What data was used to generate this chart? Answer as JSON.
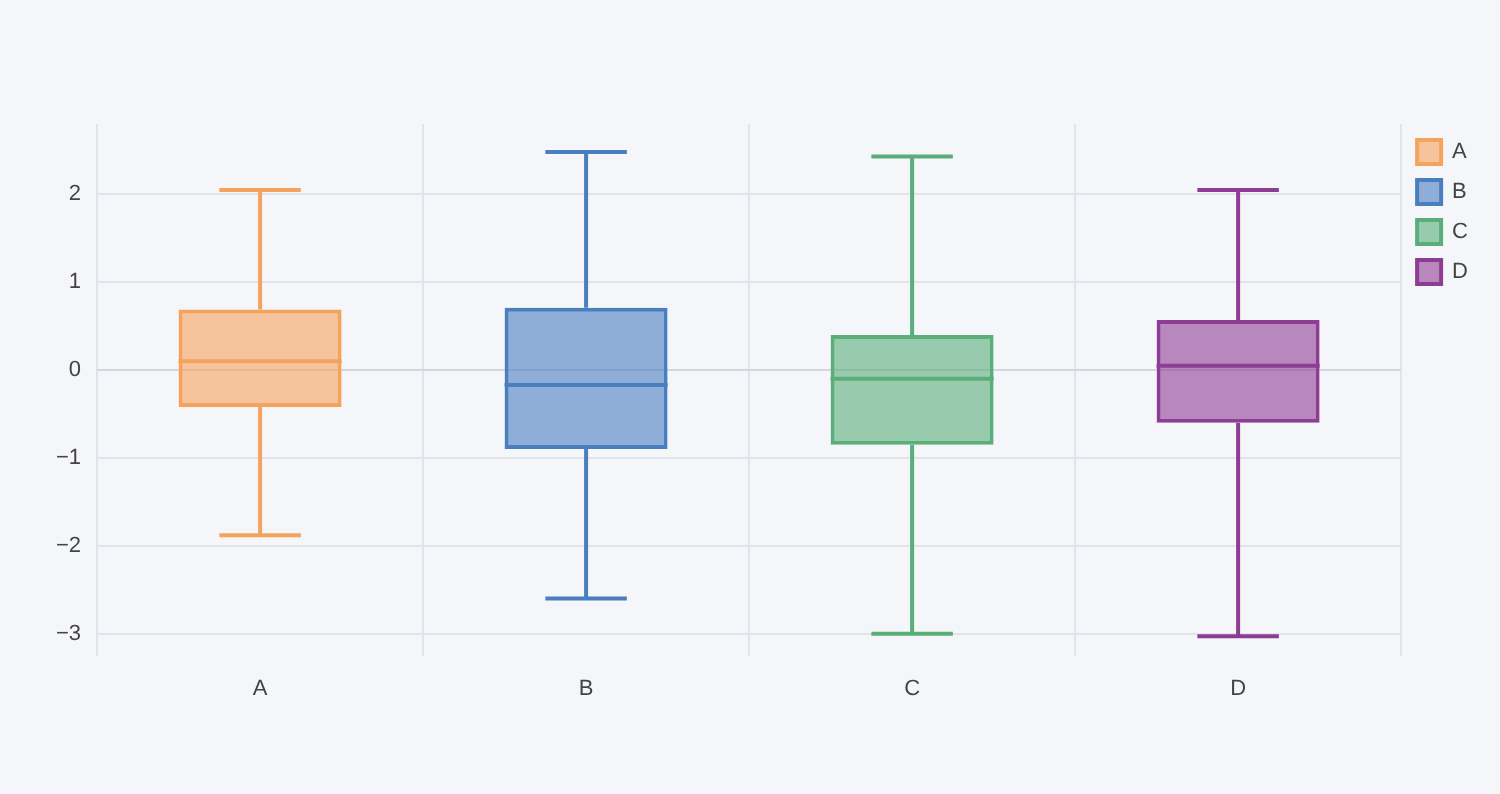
{
  "chart_data": {
    "type": "box",
    "categories": [
      "A",
      "B",
      "C",
      "D"
    ],
    "series": [
      {
        "name": "A",
        "color": "#f5a25d",
        "boxes": [
          {
            "low": -1.88,
            "q1": -0.42,
            "median": 0.1,
            "q3": 0.69,
            "high": 2.05
          },
          null,
          null,
          null
        ]
      },
      {
        "name": "B",
        "color": "#4a7fbf",
        "boxes": [
          null,
          {
            "low": -2.6,
            "q1": -0.9,
            "median": -0.17,
            "q3": 0.71,
            "high": 2.48
          },
          null,
          null
        ]
      },
      {
        "name": "C",
        "color": "#5aae7a",
        "boxes": [
          null,
          null,
          {
            "low": -3.0,
            "q1": -0.85,
            "median": -0.1,
            "q3": 0.4,
            "high": 2.43
          },
          null
        ]
      },
      {
        "name": "D",
        "color": "#8e3d94",
        "boxes": [
          null,
          null,
          null,
          {
            "low": -3.03,
            "q1": -0.6,
            "median": 0.05,
            "q3": 0.57,
            "high": 2.05
          }
        ]
      }
    ],
    "ylim": [
      -3.25,
      2.8
    ],
    "yticks": [
      {
        "value": -3,
        "label": "−3"
      },
      {
        "value": -2,
        "label": "−2"
      },
      {
        "value": -1,
        "label": "−1"
      },
      0,
      1,
      2
    ],
    "grid": true,
    "legend": "top right"
  }
}
